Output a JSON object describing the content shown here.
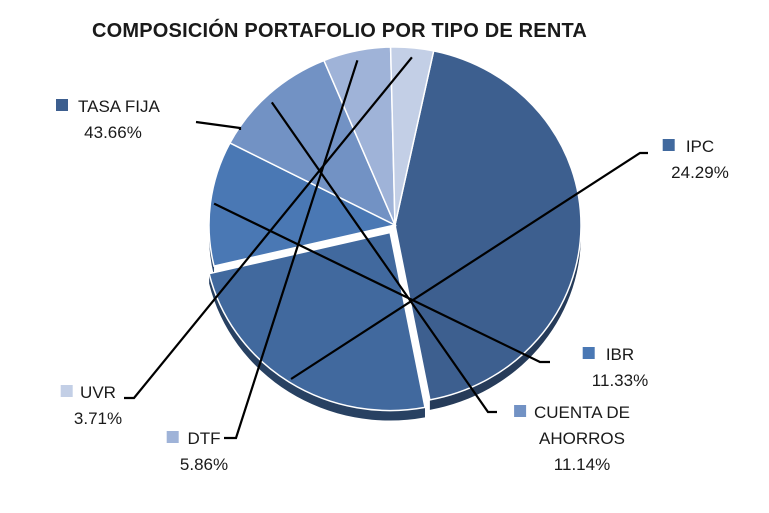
{
  "chart_data": {
    "type": "pie",
    "title": "COMPOSICIÓN PORTAFOLIO POR TIPO DE RENTA",
    "legend_placement": "labels-outside-with-leaders",
    "slices": [
      {
        "name": "TASA FIJA",
        "label_lines": [
          "TASA FIJA"
        ],
        "percent_label": "43.66%",
        "value": 43.66,
        "color": "#3d5f8f"
      },
      {
        "name": "IPC",
        "label_lines": [
          "IPC"
        ],
        "percent_label": "24.29%",
        "value": 24.29,
        "color": "#41699e"
      },
      {
        "name": "IBR",
        "label_lines": [
          "IBR"
        ],
        "percent_label": "11.33%",
        "value": 11.33,
        "color": "#4a78b4"
      },
      {
        "name": "CUENTA DE AHORROS",
        "label_lines": [
          "CUENTA DE",
          "AHORROS"
        ],
        "percent_label": "11.14%",
        "value": 11.14,
        "color": "#7292c4"
      },
      {
        "name": "DTF",
        "label_lines": [
          "DTF"
        ],
        "percent_label": "5.86%",
        "value": 5.86,
        "color": "#9fb3d8"
      },
      {
        "name": "UVR",
        "label_lines": [
          "UVR"
        ],
        "percent_label": "3.71%",
        "value": 3.71,
        "color": "#c3cfe6"
      }
    ]
  }
}
